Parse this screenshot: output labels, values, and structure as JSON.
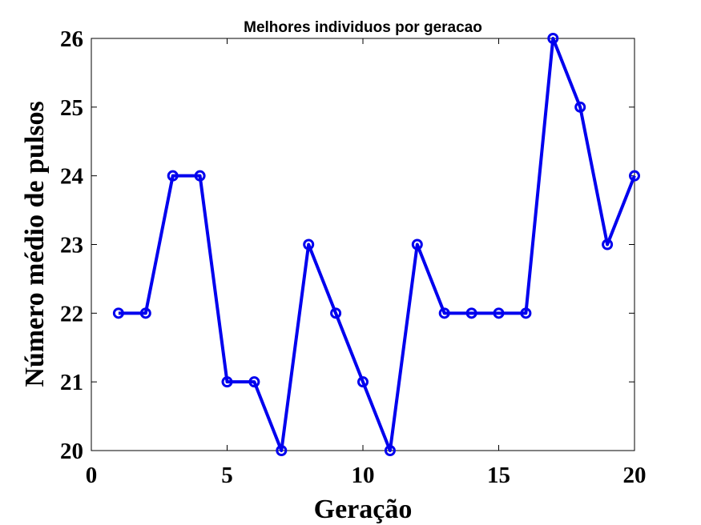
{
  "chart_data": {
    "type": "line",
    "title": "Melhores individuos por geracao",
    "xlabel": "Geração",
    "ylabel": "Número médio de pulsos",
    "xlim": [
      0,
      20
    ],
    "ylim": [
      20,
      26
    ],
    "xticks": [
      0,
      5,
      10,
      15,
      20
    ],
    "yticks": [
      20,
      21,
      22,
      23,
      24,
      25,
      26
    ],
    "grid": false,
    "marker": "circle",
    "series": [
      {
        "color": "#0000ee",
        "x": [
          1,
          2,
          3,
          4,
          5,
          6,
          7,
          8,
          9,
          10,
          11,
          12,
          13,
          14,
          15,
          16,
          17,
          18,
          19,
          20
        ],
        "y": [
          22,
          22,
          24,
          24,
          21,
          21,
          20,
          23,
          22,
          21,
          20,
          23,
          22,
          22,
          22,
          22,
          26,
          25,
          23,
          24
        ]
      }
    ]
  }
}
